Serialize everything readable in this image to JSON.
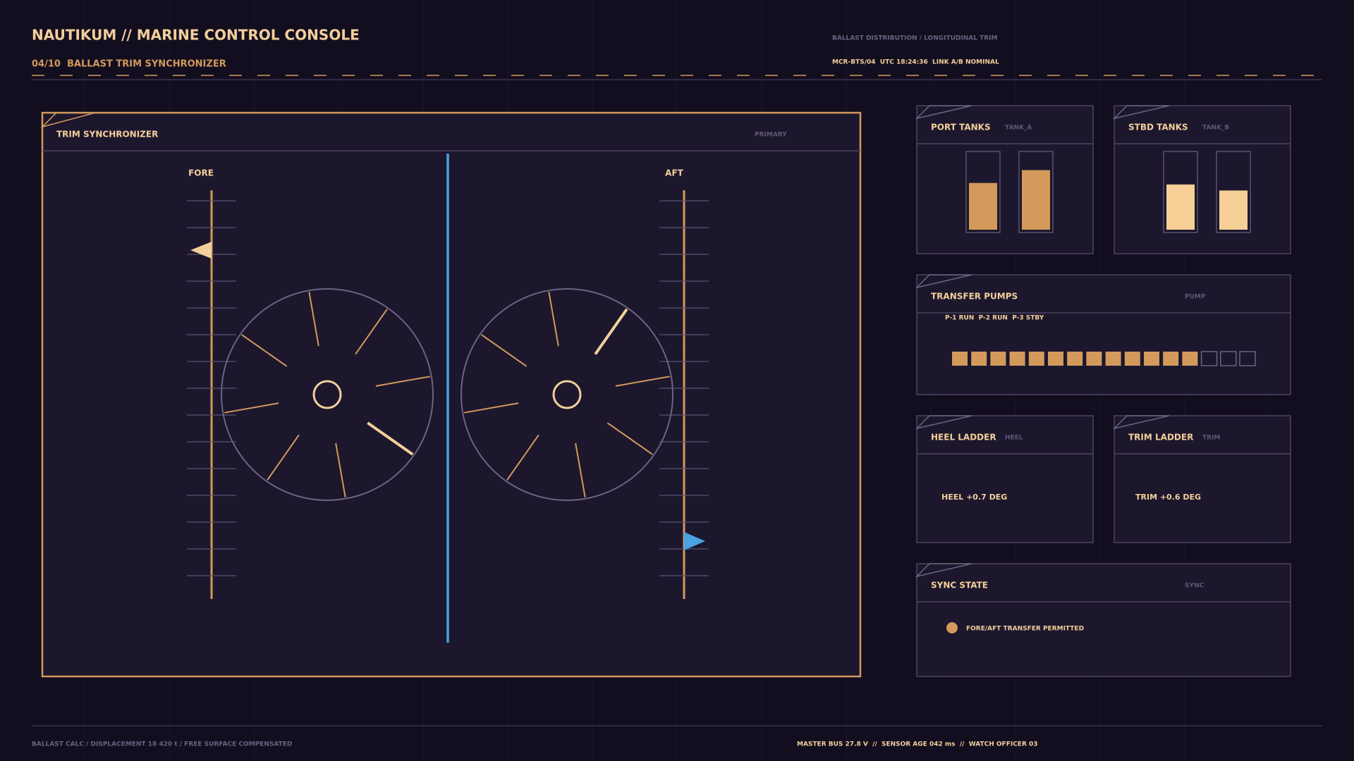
{
  "header": {
    "title": "NAUTIKUM // MARINE CONTROL CONSOLE",
    "page": "04/10",
    "subtitle": "BALLAST TRIM SYNCHRONIZER",
    "context": "BALLAST DISTRIBUTION / LONGITUDINAL TRIM",
    "status": "MCR-BTS/04  UTC 18:24:36  LINK A/B NOMINAL"
  },
  "main": {
    "title": "TRIM SYNCHRONIZER",
    "tag": "PRIMARY",
    "fore": "FORE",
    "aft": "AFT"
  },
  "port_tanks": {
    "title": "PORT TANKS",
    "tag": "TANK_A",
    "levels": [
      62,
      79
    ]
  },
  "stbd_tanks": {
    "title": "STBD TANKS",
    "tag": "TANK_B",
    "levels": [
      60,
      52
    ]
  },
  "pumps": {
    "title": "TRANSFER PUMPS",
    "tag": "PUMP",
    "status": "P-1 RUN  P-2 RUN  P-3 STBY",
    "segments": [
      1,
      1,
      1,
      1,
      1,
      1,
      1,
      1,
      1,
      1,
      1,
      1,
      1,
      0,
      0,
      0
    ]
  },
  "heel": {
    "title": "HEEL LADDER",
    "tag": "HEEL",
    "readout": "HEEL +0.7 DEG"
  },
  "trim": {
    "title": "TRIM LADDER",
    "tag": "TRIM",
    "readout": "TRIM +0.6 DEG"
  },
  "sync": {
    "title": "SYNC STATE",
    "tag": "SYNC",
    "message": "FORE/AFT TRANSFER PERMITTED"
  },
  "footer": {
    "left": "BALLAST CALC / DISPLACEMENT 18 420 t / FREE SURFACE COMPENSATED",
    "right": "MASTER BUS 27.8 V  //  SENSOR AGE 042 ms  //  WATCH OFFICER 03"
  }
}
